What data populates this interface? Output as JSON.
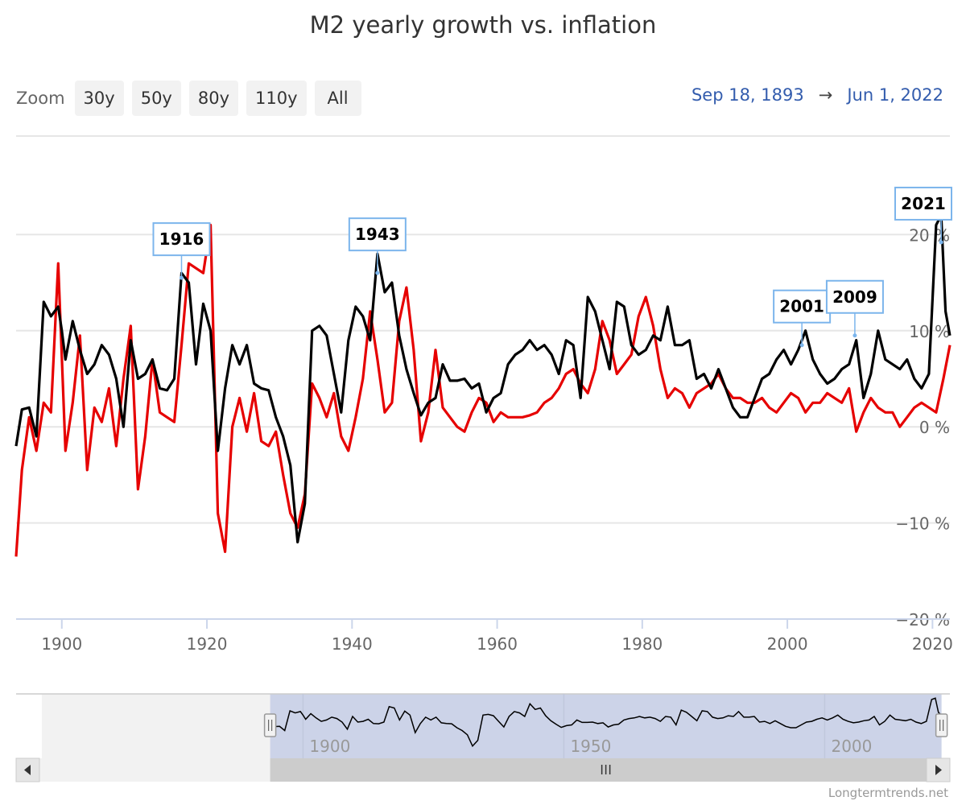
{
  "title": "M2 yearly growth vs. inflation",
  "zoom": {
    "label": "Zoom",
    "buttons": [
      "30y",
      "50y",
      "80y",
      "110y",
      "All"
    ]
  },
  "range": {
    "from": "Sep 18, 1893",
    "arrow": "→",
    "to": "Jun 1, 2022"
  },
  "credit": "Longtermtrends.net",
  "colors": {
    "m2": "#000000",
    "inflation": "#e60000",
    "navigatorFill": "#ccd3e8",
    "annotationBorder": "#7cb5ec"
  },
  "chart_data": {
    "type": "line",
    "xlim": [
      1893.7,
      2022.4
    ],
    "ylim": [
      -20,
      30
    ],
    "yticks": [
      -20,
      -10,
      0,
      10,
      20
    ],
    "ytick_labels": [
      "−20 %",
      "−10 %",
      "0 %",
      "10 %",
      "20 %"
    ],
    "xticks": [
      1900,
      1920,
      1940,
      1960,
      1980,
      2000,
      2020
    ],
    "xtick_labels": [
      "1900",
      "1920",
      "1940",
      "1960",
      "1980",
      "2000",
      "2020"
    ],
    "series": [
      {
        "color": "#000000",
        "points": [
          [
            1893.7,
            -2
          ],
          [
            1894.5,
            1.8
          ],
          [
            1895.5,
            2
          ],
          [
            1896.5,
            -1
          ],
          [
            1897.5,
            13
          ],
          [
            1898.5,
            11.5
          ],
          [
            1899.5,
            12.5
          ],
          [
            1900,
            10
          ],
          [
            1900.5,
            7
          ],
          [
            1901.5,
            11
          ],
          [
            1902.5,
            8
          ],
          [
            1903.5,
            5.5
          ],
          [
            1904.5,
            6.5
          ],
          [
            1905.5,
            8.5
          ],
          [
            1906.5,
            7.5
          ],
          [
            1907.5,
            5
          ],
          [
            1908.5,
            0
          ],
          [
            1909.5,
            9
          ],
          [
            1910.5,
            5
          ],
          [
            1911.5,
            5.5
          ],
          [
            1912.5,
            7
          ],
          [
            1913.5,
            4
          ],
          [
            1914.5,
            3.8
          ],
          [
            1915.5,
            5
          ],
          [
            1916.5,
            16
          ],
          [
            1917.5,
            15
          ],
          [
            1918.5,
            6.5
          ],
          [
            1919.5,
            12.8
          ],
          [
            1920.5,
            10
          ],
          [
            1921.5,
            -2.5
          ],
          [
            1922.5,
            4
          ],
          [
            1923.5,
            8.5
          ],
          [
            1924.5,
            6.5
          ],
          [
            1925.5,
            8.5
          ],
          [
            1926.5,
            4.5
          ],
          [
            1927.5,
            4
          ],
          [
            1928.5,
            3.8
          ],
          [
            1929.5,
            1
          ],
          [
            1930.5,
            -1
          ],
          [
            1931.5,
            -4
          ],
          [
            1932.5,
            -12
          ],
          [
            1933.5,
            -8
          ],
          [
            1934.5,
            10
          ],
          [
            1935.5,
            10.5
          ],
          [
            1936.5,
            9.5
          ],
          [
            1937.5,
            5.5
          ],
          [
            1938.5,
            1.5
          ],
          [
            1939.5,
            9
          ],
          [
            1940.5,
            12.5
          ],
          [
            1941.5,
            11.5
          ],
          [
            1942.5,
            9
          ],
          [
            1943.5,
            18
          ],
          [
            1944.5,
            14
          ],
          [
            1945.5,
            15
          ],
          [
            1946.5,
            9.5
          ],
          [
            1947.5,
            6
          ],
          [
            1948.5,
            3.5
          ],
          [
            1949.5,
            1.2
          ],
          [
            1950.5,
            2.5
          ],
          [
            1951.5,
            3
          ],
          [
            1952.5,
            6.5
          ],
          [
            1953.5,
            4.8
          ],
          [
            1954.5,
            4.8
          ],
          [
            1955.5,
            5
          ],
          [
            1956.5,
            4
          ],
          [
            1957.5,
            4.5
          ],
          [
            1958.5,
            1.5
          ],
          [
            1959.5,
            3
          ],
          [
            1960.5,
            3.5
          ],
          [
            1961.5,
            6.5
          ],
          [
            1962.5,
            7.5
          ],
          [
            1963.5,
            8
          ],
          [
            1964.5,
            9
          ],
          [
            1965.5,
            8
          ],
          [
            1966.5,
            8.5
          ],
          [
            1967.5,
            7.5
          ],
          [
            1968.5,
            5.5
          ],
          [
            1969.5,
            9
          ],
          [
            1970.5,
            8.5
          ],
          [
            1971.5,
            3
          ],
          [
            1972.5,
            13.5
          ],
          [
            1973.5,
            12
          ],
          [
            1974.5,
            9
          ],
          [
            1975.5,
            6
          ],
          [
            1976.5,
            13
          ],
          [
            1977.5,
            12.5
          ],
          [
            1978.5,
            8.5
          ],
          [
            1979.5,
            7.5
          ],
          [
            1980.5,
            8
          ],
          [
            1981.5,
            9.5
          ],
          [
            1982.5,
            9
          ],
          [
            1983.5,
            12.5
          ],
          [
            1984.5,
            8.5
          ],
          [
            1985.5,
            8.5
          ],
          [
            1986.5,
            9
          ],
          [
            1987.5,
            5
          ],
          [
            1988.5,
            5.5
          ],
          [
            1989.5,
            4
          ],
          [
            1990.5,
            6
          ],
          [
            1991.5,
            4
          ],
          [
            1992.5,
            2
          ],
          [
            1993.5,
            1
          ],
          [
            1994.5,
            1
          ],
          [
            1995.5,
            3
          ],
          [
            1996.5,
            5
          ],
          [
            1997.5,
            5.5
          ],
          [
            1998.5,
            7
          ],
          [
            1999.5,
            8
          ],
          [
            2000.5,
            6.5
          ],
          [
            2001.5,
            8
          ],
          [
            2002.5,
            10
          ],
          [
            2003.5,
            7
          ],
          [
            2004.5,
            5.5
          ],
          [
            2005.5,
            4.5
          ],
          [
            2006.5,
            5
          ],
          [
            2007.5,
            6
          ],
          [
            2008.5,
            6.5
          ],
          [
            2009.5,
            9
          ],
          [
            2010.5,
            3
          ],
          [
            2011.5,
            5.5
          ],
          [
            2012.5,
            10
          ],
          [
            2013.5,
            7
          ],
          [
            2014.5,
            6.5
          ],
          [
            2015.5,
            6
          ],
          [
            2016.5,
            7
          ],
          [
            2017.5,
            5
          ],
          [
            2018.5,
            4
          ],
          [
            2019.5,
            5.5
          ],
          [
            2020.5,
            21
          ],
          [
            2021.2,
            22
          ],
          [
            2021.8,
            12
          ],
          [
            2022.4,
            9.5
          ]
        ]
      },
      {
        "color": "#e60000",
        "points": [
          [
            1893.7,
            -13.5
          ],
          [
            1894.5,
            -4.5
          ],
          [
            1895.5,
            1
          ],
          [
            1896.5,
            -2.5
          ],
          [
            1897.5,
            2.5
          ],
          [
            1898.5,
            1.5
          ],
          [
            1899.5,
            17
          ],
          [
            1900.5,
            -2.5
          ],
          [
            1901.5,
            2.5
          ],
          [
            1902.5,
            9.5
          ],
          [
            1903.5,
            -4.5
          ],
          [
            1904.5,
            2
          ],
          [
            1905.5,
            0.5
          ],
          [
            1906.5,
            4
          ],
          [
            1907.5,
            -2
          ],
          [
            1908.5,
            5
          ],
          [
            1909.5,
            10.5
          ],
          [
            1910.5,
            -6.5
          ],
          [
            1911.5,
            -1
          ],
          [
            1912.5,
            7
          ],
          [
            1913.5,
            1.5
          ],
          [
            1914.5,
            1
          ],
          [
            1915.5,
            0.5
          ],
          [
            1916.5,
            8.5
          ],
          [
            1917.5,
            17
          ],
          [
            1918.5,
            16.5
          ],
          [
            1919.5,
            16
          ],
          [
            1920.5,
            21
          ],
          [
            1921.5,
            -9
          ],
          [
            1922.5,
            -13
          ],
          [
            1923.5,
            0
          ],
          [
            1924.5,
            3
          ],
          [
            1925.5,
            -0.5
          ],
          [
            1926.5,
            3.5
          ],
          [
            1927.5,
            -1.5
          ],
          [
            1928.5,
            -2
          ],
          [
            1929.5,
            -0.5
          ],
          [
            1930.5,
            -5
          ],
          [
            1931.5,
            -9
          ],
          [
            1932.5,
            -10.5
          ],
          [
            1933.5,
            -7
          ],
          [
            1934.5,
            4.5
          ],
          [
            1935.5,
            3
          ],
          [
            1936.5,
            1
          ],
          [
            1937.5,
            3.5
          ],
          [
            1938.5,
            -1
          ],
          [
            1939.5,
            -2.5
          ],
          [
            1940.5,
            1
          ],
          [
            1941.5,
            5
          ],
          [
            1942.5,
            12
          ],
          [
            1943.5,
            7
          ],
          [
            1944.5,
            1.5
          ],
          [
            1945.5,
            2.5
          ],
          [
            1946.5,
            11
          ],
          [
            1947.5,
            14.5
          ],
          [
            1948.5,
            8
          ],
          [
            1949.5,
            -1.5
          ],
          [
            1950.5,
            1.5
          ],
          [
            1951.5,
            8
          ],
          [
            1952.5,
            2
          ],
          [
            1953.5,
            1
          ],
          [
            1954.5,
            0
          ],
          [
            1955.5,
            -0.5
          ],
          [
            1956.5,
            1.5
          ],
          [
            1957.5,
            3
          ],
          [
            1958.5,
            2.5
          ],
          [
            1959.5,
            0.5
          ],
          [
            1960.5,
            1.5
          ],
          [
            1961.5,
            1
          ],
          [
            1962.5,
            1
          ],
          [
            1963.5,
            1
          ],
          [
            1964.5,
            1.2
          ],
          [
            1965.5,
            1.5
          ],
          [
            1966.5,
            2.5
          ],
          [
            1967.5,
            3
          ],
          [
            1968.5,
            4
          ],
          [
            1969.5,
            5.5
          ],
          [
            1970.5,
            6
          ],
          [
            1971.5,
            4.5
          ],
          [
            1972.5,
            3.5
          ],
          [
            1973.5,
            6
          ],
          [
            1974.5,
            11
          ],
          [
            1975.5,
            9
          ],
          [
            1976.5,
            5.5
          ],
          [
            1977.5,
            6.5
          ],
          [
            1978.5,
            7.5
          ],
          [
            1979.5,
            11.5
          ],
          [
            1980.5,
            13.5
          ],
          [
            1981.5,
            10.5
          ],
          [
            1982.5,
            6
          ],
          [
            1983.5,
            3
          ],
          [
            1984.5,
            4
          ],
          [
            1985.5,
            3.5
          ],
          [
            1986.5,
            2
          ],
          [
            1987.5,
            3.5
          ],
          [
            1988.5,
            4
          ],
          [
            1989.5,
            4.5
          ],
          [
            1990.5,
            5.5
          ],
          [
            1991.5,
            4
          ],
          [
            1992.5,
            3
          ],
          [
            1993.5,
            3
          ],
          [
            1994.5,
            2.5
          ],
          [
            1995.5,
            2.5
          ],
          [
            1996.5,
            3
          ],
          [
            1997.5,
            2
          ],
          [
            1998.5,
            1.5
          ],
          [
            1999.5,
            2.5
          ],
          [
            2000.5,
            3.5
          ],
          [
            2001.5,
            3
          ],
          [
            2002.5,
            1.5
          ],
          [
            2003.5,
            2.5
          ],
          [
            2004.5,
            2.5
          ],
          [
            2005.5,
            3.5
          ],
          [
            2006.5,
            3
          ],
          [
            2007.5,
            2.5
          ],
          [
            2008.5,
            4
          ],
          [
            2009.5,
            -0.5
          ],
          [
            2010.5,
            1.5
          ],
          [
            2011.5,
            3
          ],
          [
            2012.5,
            2
          ],
          [
            2013.5,
            1.5
          ],
          [
            2014.5,
            1.5
          ],
          [
            2015.5,
            0
          ],
          [
            2016.5,
            1
          ],
          [
            2017.5,
            2
          ],
          [
            2018.5,
            2.5
          ],
          [
            2019.5,
            2
          ],
          [
            2020.5,
            1.5
          ],
          [
            2021.5,
            5
          ],
          [
            2022.4,
            8.5
          ]
        ]
      }
    ],
    "annotations": [
      {
        "label": "1916",
        "x": 1916.5,
        "y": 15.5
      },
      {
        "label": "1943",
        "x": 1943.5,
        "y": 16
      },
      {
        "label": "2001",
        "x": 2002,
        "y": 8.5
      },
      {
        "label": "2009",
        "x": 2009.3,
        "y": 9.5
      },
      {
        "label": "2021",
        "x": 2021.2,
        "y": 19.2
      }
    ],
    "navigator": {
      "xticks": [
        1900,
        1950,
        2000
      ],
      "xtick_labels": [
        "1900",
        "1950",
        "2000"
      ],
      "selected_range": [
        1893.7,
        2022.4
      ]
    }
  }
}
